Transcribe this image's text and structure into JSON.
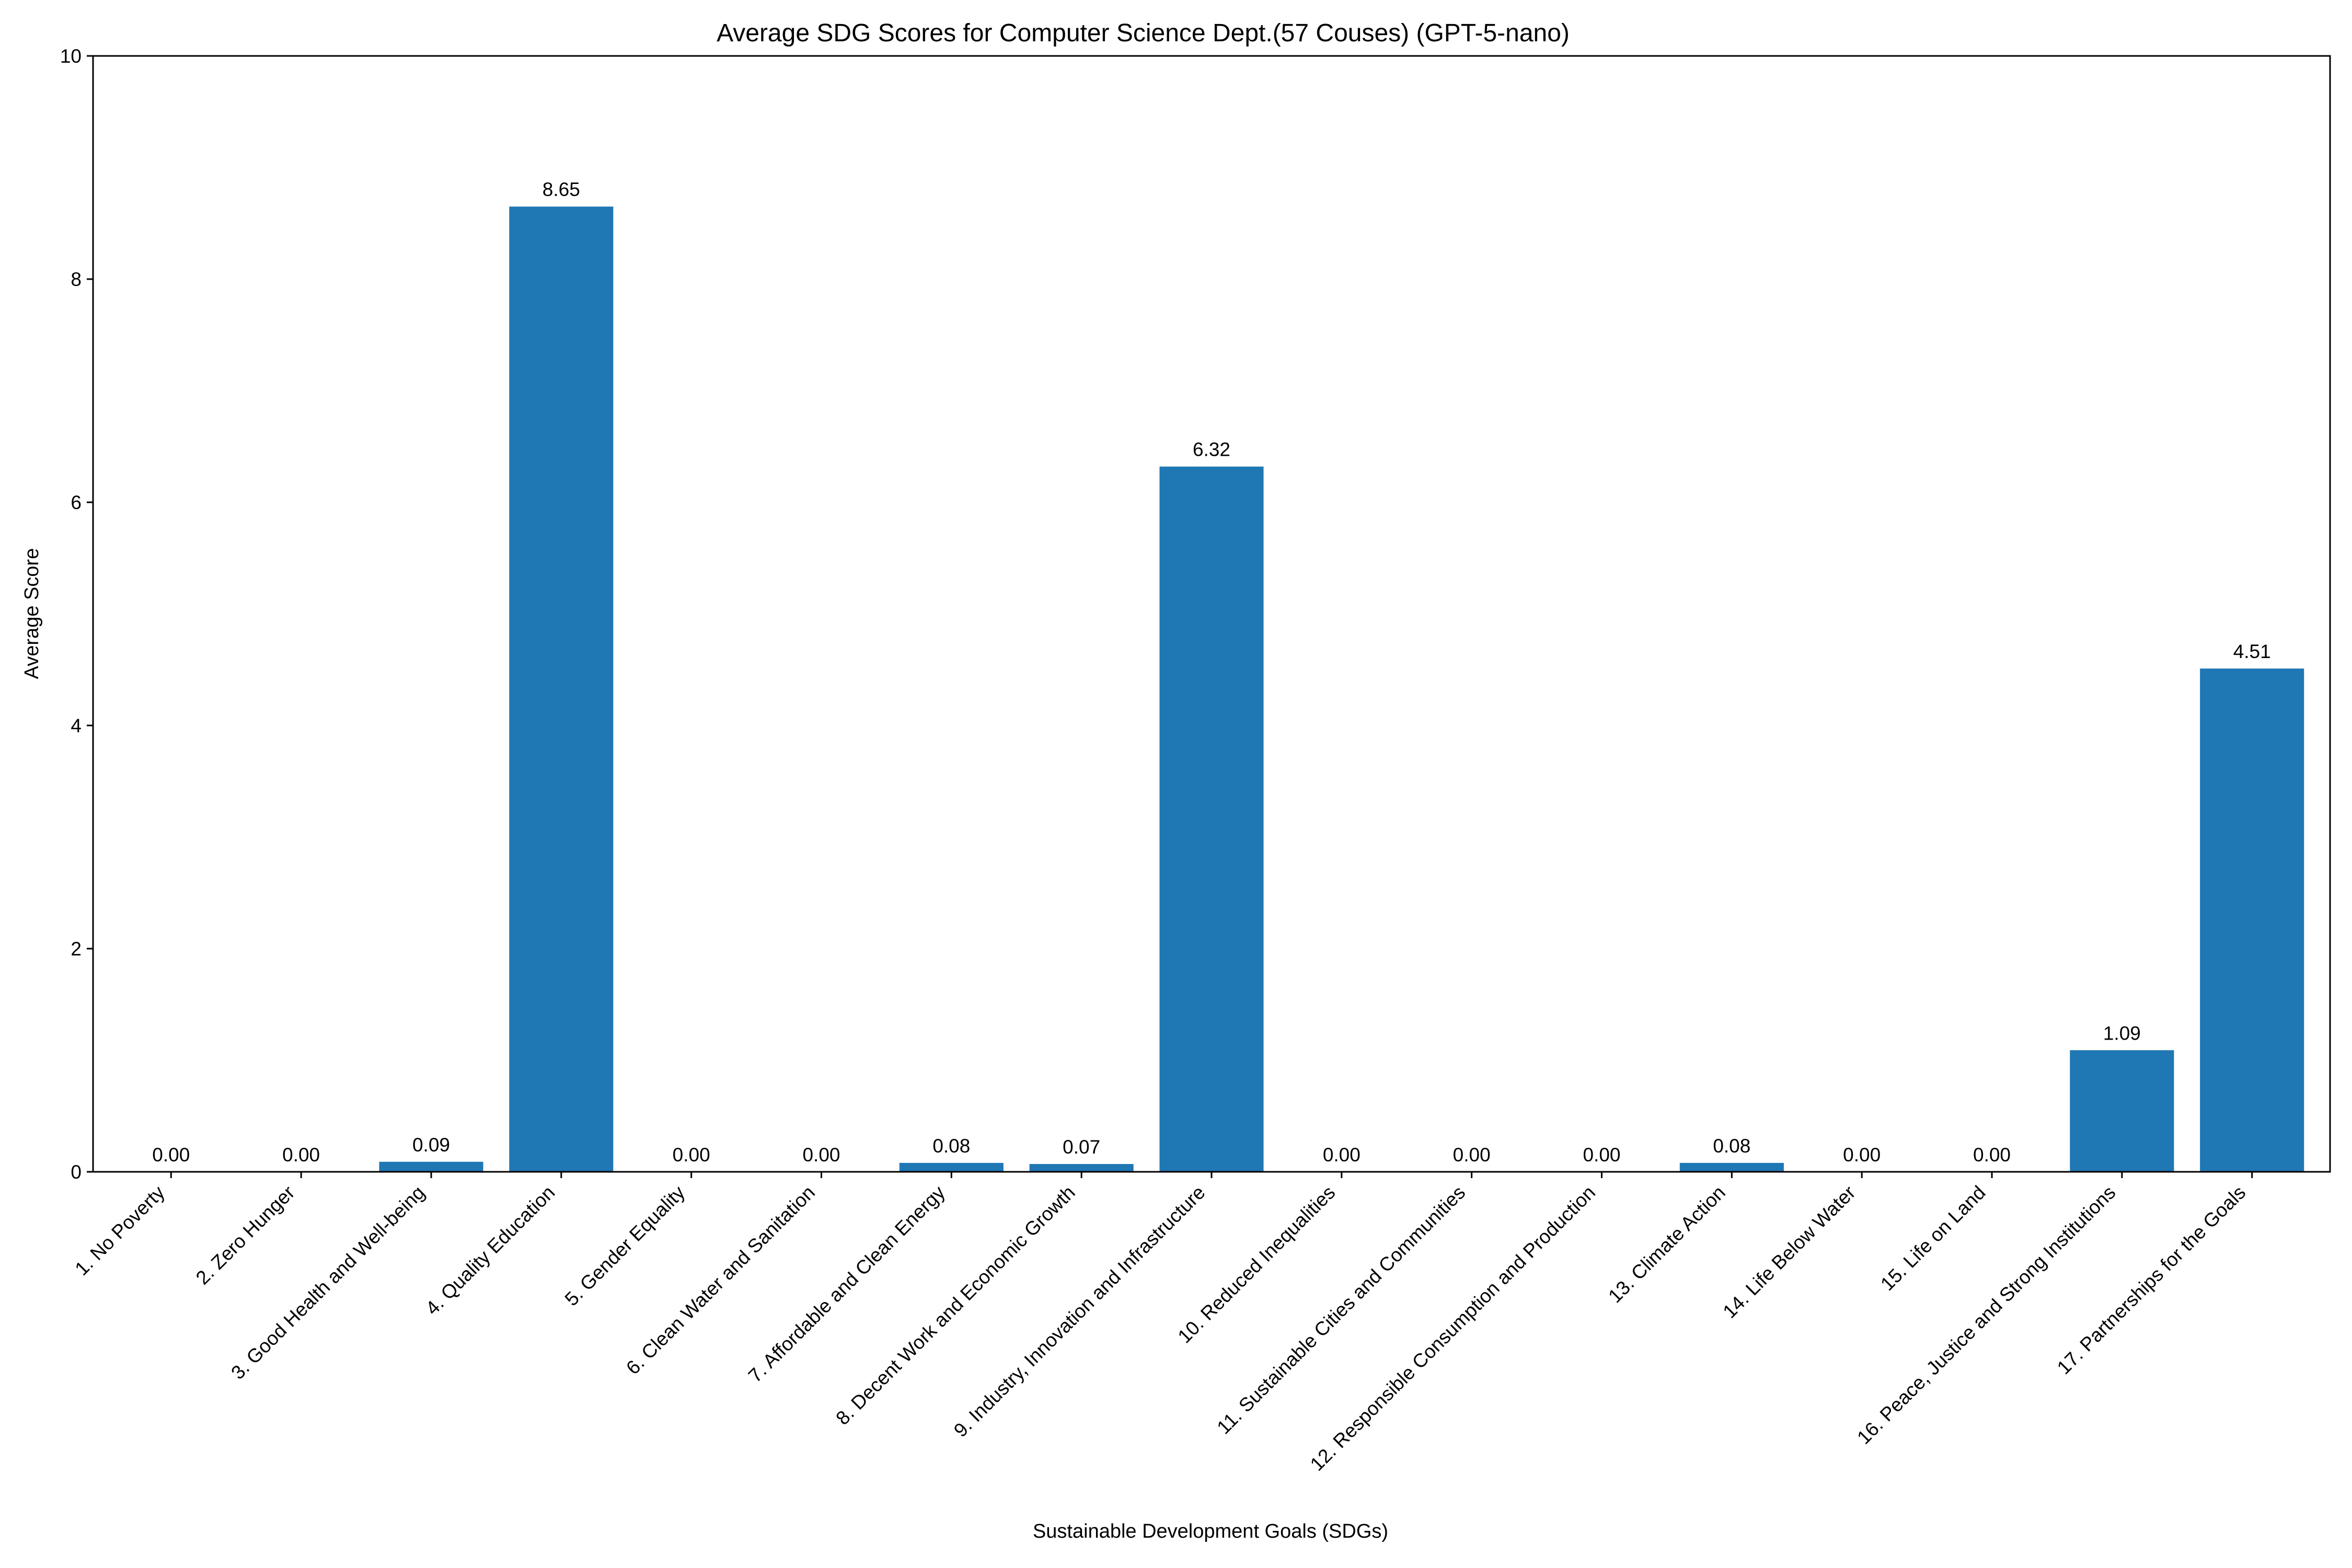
{
  "chart_data": {
    "type": "bar",
    "title": "Average SDG Scores for Computer Science Dept.(57 Couses) (GPT-5-nano)",
    "xlabel": "Sustainable Development Goals (SDGs)",
    "ylabel": "Average Score",
    "ylim": [
      0,
      10
    ],
    "yticks": [
      0,
      2,
      4,
      6,
      8,
      10
    ],
    "bar_color": "#1f77b4",
    "grid": false,
    "legend": "none",
    "categories": [
      "1. No Poverty",
      "2. Zero Hunger",
      "3. Good Health and Well-being",
      "4. Quality Education",
      "5. Gender Equality",
      "6. Clean Water and Sanitation",
      "7. Affordable and Clean Energy",
      "8. Decent Work and Economic Growth",
      "9. Industry, Innovation and Infrastructure",
      "10. Reduced Inequalities",
      "11. Sustainable Cities and Communities",
      "12. Responsible Consumption and Production",
      "13. Climate Action",
      "14. Life Below Water",
      "15. Life on Land",
      "16. Peace, Justice and Strong Institutions",
      "17. Partnerships for the Goals"
    ],
    "values": [
      0.0,
      0.0,
      0.09,
      8.65,
      0.0,
      0.0,
      0.08,
      0.07,
      6.32,
      0.0,
      0.0,
      0.0,
      0.08,
      0.0,
      0.0,
      1.09,
      4.51
    ],
    "value_labels": [
      "0.00",
      "0.00",
      "0.09",
      "8.65",
      "0.00",
      "0.00",
      "0.08",
      "0.07",
      "6.32",
      "0.00",
      "0.00",
      "0.00",
      "0.08",
      "0.00",
      "0.00",
      "1.09",
      "4.51"
    ]
  }
}
